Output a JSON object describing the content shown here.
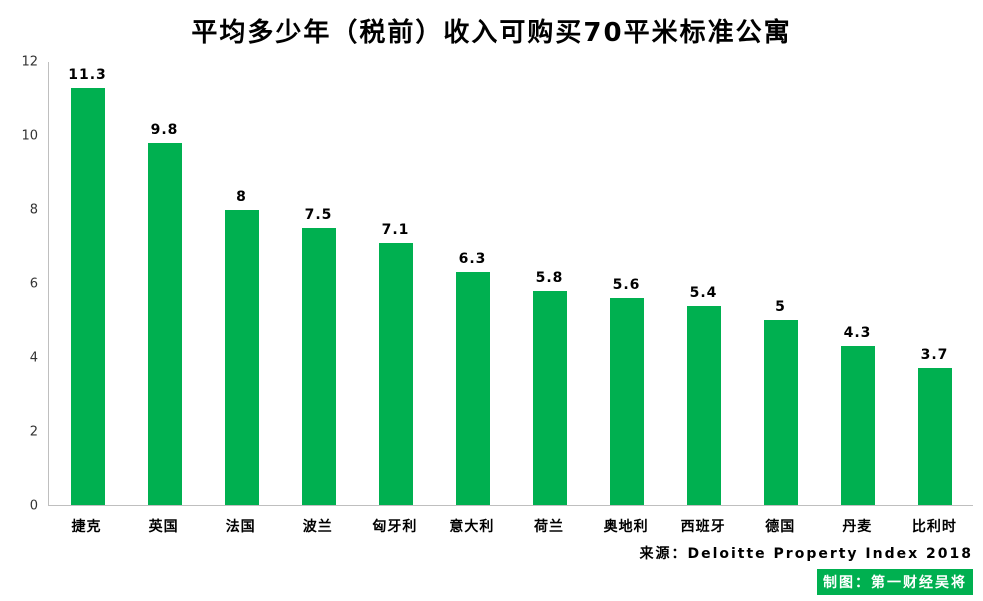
{
  "title": "平均多少年（税前）收入可购买70平米标准公寓",
  "chart_data": {
    "type": "bar",
    "title": "平均多少年（税前）收入可购买70平米标准公寓",
    "categories": [
      "捷克",
      "英国",
      "法国",
      "波兰",
      "匈牙利",
      "意大利",
      "荷兰",
      "奥地利",
      "西班牙",
      "德国",
      "丹麦",
      "比利时"
    ],
    "values": [
      11.3,
      9.8,
      8,
      7.5,
      7.1,
      6.3,
      5.8,
      5.6,
      5.4,
      5,
      4.3,
      3.7
    ],
    "value_labels": [
      "11.3",
      "9.8",
      "8",
      "7.5",
      "7.1",
      "6.3",
      "5.8",
      "5.6",
      "5.4",
      "5",
      "4.3",
      "3.7"
    ],
    "xlabel": "",
    "ylabel": "",
    "ylim": [
      0,
      12
    ],
    "yticks": [
      0,
      2,
      4,
      6,
      8,
      10,
      12
    ],
    "grid": false,
    "legend": false,
    "bar_color": "#00B050"
  },
  "source": {
    "line1": "来源：Deloitte Property Index 2018",
    "line2": "制图：第一财经吴将"
  },
  "colors": {
    "accent_green": "#00B050",
    "axis_gray": "#bfbfbf",
    "text_black": "#000000"
  }
}
